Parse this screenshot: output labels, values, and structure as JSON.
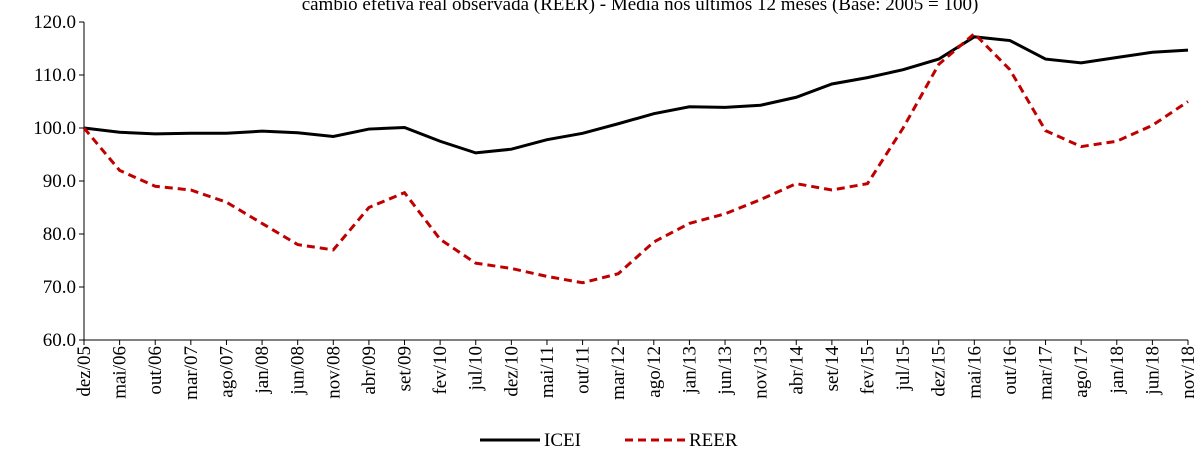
{
  "chart_data": {
    "type": "line",
    "title": "câmbio efetiva real observada (REER) - Média nos últimos 12 meses (Base: 2005 = 100)",
    "categories": [
      "dez/05",
      "mai/06",
      "out/06",
      "mar/07",
      "ago/07",
      "jan/08",
      "jun/08",
      "nov/08",
      "abr/09",
      "set/09",
      "fev/10",
      "jul/10",
      "dez/10",
      "mai/11",
      "out/11",
      "mar/12",
      "ago/12",
      "jan/13",
      "jun/13",
      "nov/13",
      "abr/14",
      "set/14",
      "fev/15",
      "jul/15",
      "dez/15",
      "mai/16",
      "out/16",
      "mar/17",
      "ago/17",
      "jan/18",
      "jun/18",
      "nov/18"
    ],
    "series": [
      {
        "name": "ICEI",
        "color": "#000000",
        "dash": false,
        "values": [
          100.0,
          99.2,
          98.9,
          99.0,
          99.0,
          99.4,
          99.1,
          98.4,
          99.8,
          100.1,
          97.5,
          95.3,
          96.0,
          97.8,
          99.0,
          100.8,
          102.7,
          104.0,
          103.9,
          104.3,
          105.8,
          108.3,
          109.5,
          111.0,
          113.0,
          117.2,
          116.5,
          113.0,
          112.3,
          113.3,
          114.3,
          114.7
        ]
      },
      {
        "name": "REER",
        "color": "#c00000",
        "dash": true,
        "values": [
          100.0,
          92.0,
          89.0,
          88.3,
          86.0,
          82.0,
          78.0,
          77.0,
          85.0,
          87.8,
          79.0,
          74.5,
          73.5,
          72.0,
          70.8,
          72.5,
          78.5,
          82.0,
          83.8,
          86.5,
          89.5,
          88.3,
          89.5,
          100.0,
          112.0,
          117.8,
          111.0,
          99.5,
          96.5,
          97.5,
          100.5,
          105.0
        ]
      }
    ],
    "ylim": [
      60,
      120
    ],
    "yticks": [
      {
        "value": 60,
        "label": "60.0"
      },
      {
        "value": 70,
        "label": "70.0"
      },
      {
        "value": 80,
        "label": "80.0"
      },
      {
        "value": 90,
        "label": "90.0"
      },
      {
        "value": 100,
        "label": "100.0"
      },
      {
        "value": 110,
        "label": "110.0"
      },
      {
        "value": 120,
        "label": "120.0"
      }
    ],
    "grid": false,
    "legend": "bottom"
  }
}
